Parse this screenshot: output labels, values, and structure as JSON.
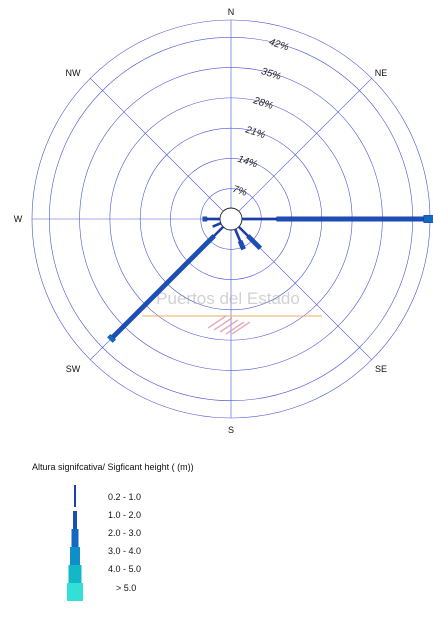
{
  "chart_data": {
    "type": "wind_rose",
    "directions": [
      "N",
      "NE",
      "E",
      "SE",
      "S",
      "SW",
      "W",
      "NW"
    ],
    "direction_labels": {
      "N": "N",
      "NE": "NE",
      "E": "",
      "SE": "SE",
      "S": "S",
      "SW": "SW",
      "W": "W",
      "NW": "NW"
    },
    "rings": [
      7,
      14,
      21,
      28,
      35,
      42
    ],
    "ring_labels": [
      "7%",
      "14%",
      "21%",
      "28%",
      "35%",
      "42%"
    ],
    "rmax": 46,
    "series": [
      {
        "direction": "E",
        "bins": [
          {
            "class": "0.2 - 1.0",
            "value": 8
          },
          {
            "class": "1.0 - 2.0",
            "value": 34
          },
          {
            "class": "2.0 - 3.0",
            "value": 3
          }
        ]
      },
      {
        "direction": "SW",
        "bins": [
          {
            "class": "0.2 - 1.0",
            "value": 3
          },
          {
            "class": "1.0 - 2.0",
            "value": 33
          },
          {
            "class": "2.0 - 3.0",
            "value": 1
          }
        ]
      },
      {
        "direction": "SSE",
        "bins": [
          {
            "class": "0.2 - 1.0",
            "value": 3
          },
          {
            "class": "1.0 - 2.0",
            "value": 2
          }
        ]
      },
      {
        "direction": "SE",
        "bins": [
          {
            "class": "0.2 - 1.0",
            "value": 3
          },
          {
            "class": "1.0 - 2.0",
            "value": 4
          }
        ]
      },
      {
        "direction": "W",
        "bins": [
          {
            "class": "0.2 - 1.0",
            "value": 3
          },
          {
            "class": "1.0 - 2.0",
            "value": 1
          }
        ]
      },
      {
        "direction": "WSW",
        "bins": [
          {
            "class": "0.2 - 1.0",
            "value": 2
          }
        ]
      }
    ],
    "legend": {
      "title": "Altura signifcativa/ Sigficant height   ( (m))",
      "classes": [
        "0.2 -  1.0",
        "1.0 -  2.0",
        "2.0 -  3.0",
        "3.0 -  4.0",
        "4.0 -  5.0",
        "> 5.0"
      ]
    },
    "colors": [
      "#1a3fb0",
      "#1a4fb8",
      "#1468c0",
      "#0f8fc6",
      "#10b8c8",
      "#33e0d8"
    ],
    "watermark": "Puertos del Estado",
    "grid_color": "#4a55d6"
  }
}
